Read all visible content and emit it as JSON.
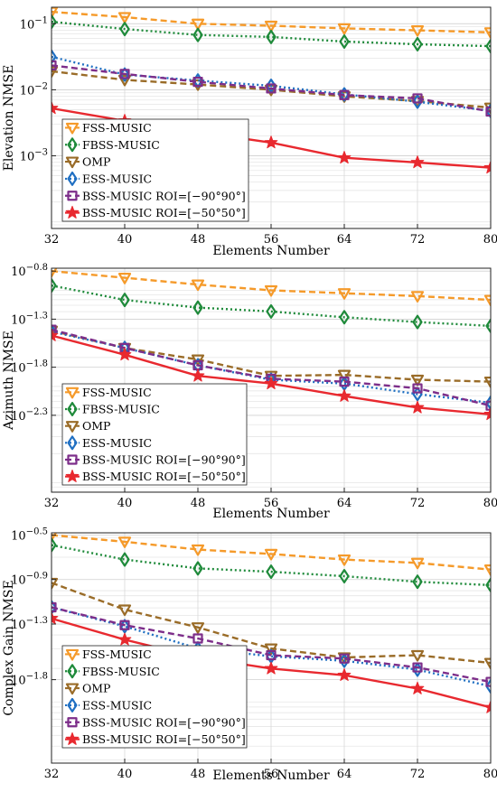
{
  "chart_data": [
    {
      "type": "line",
      "ylabel": "Elevation NMSE",
      "xlabel": "Elements Number",
      "yscale": "log",
      "ylim_log10": [
        -4.1,
        -0.75
      ],
      "xlim": [
        32,
        80
      ],
      "x": [
        32,
        40,
        48,
        56,
        64,
        72,
        80
      ],
      "xticks": [
        "32",
        "40",
        "48",
        "56",
        "64",
        "72",
        "80"
      ],
      "yticks": [
        {
          "exp": -1,
          "label": "10^-1"
        },
        {
          "exp": -2,
          "label": "10^-2"
        },
        {
          "exp": -3,
          "label": "10^-3"
        }
      ],
      "grid": true,
      "legend_position": "bottom-left",
      "series": [
        {
          "name": "FSS-MUSIC",
          "log10_values": [
            -0.82,
            -0.9,
            -1.0,
            -1.03,
            -1.07,
            -1.1,
            -1.13
          ]
        },
        {
          "name": "FBSS-MUSIC",
          "log10_values": [
            -0.97,
            -1.08,
            -1.17,
            -1.2,
            -1.27,
            -1.31,
            -1.34
          ]
        },
        {
          "name": "OMP",
          "log10_values": [
            -1.72,
            -1.85,
            -1.92,
            -2.0,
            -2.1,
            -2.17,
            -2.27
          ]
        },
        {
          "name": "ESS-MUSIC",
          "log10_values": [
            -1.5,
            -1.77,
            -1.86,
            -1.94,
            -2.07,
            -2.18,
            -2.32
          ]
        },
        {
          "name": "BSS-MUSIC ROI=[−90°90°]",
          "log10_values": [
            -1.63,
            -1.76,
            -1.88,
            -1.98,
            -2.08,
            -2.13,
            -2.33
          ]
        },
        {
          "name": "BSS-MUSIC ROI=[−50°50°]",
          "log10_values": [
            -2.28,
            -2.47,
            -2.64,
            -2.8,
            -3.03,
            -3.1,
            -3.18
          ]
        }
      ]
    },
    {
      "type": "line",
      "ylabel": "Azimuth NMSE",
      "xlabel": "Elements Number",
      "yscale": "log",
      "ylim_log10": [
        -3.1,
        -0.77
      ],
      "xlim": [
        32,
        80
      ],
      "x": [
        32,
        40,
        48,
        56,
        64,
        72,
        80
      ],
      "xticks": [
        "32",
        "40",
        "48",
        "56",
        "64",
        "72",
        "80"
      ],
      "yticks": [
        {
          "exp": -0.8,
          "label": "10^-0.8"
        },
        {
          "exp": -1.3,
          "label": "10^-1.3"
        },
        {
          "exp": -1.8,
          "label": "10^-1.8"
        },
        {
          "exp": -2.3,
          "label": "10^-2.3"
        }
      ],
      "grid": true,
      "legend_position": "bottom-left",
      "series": [
        {
          "name": "FSS-MUSIC",
          "log10_values": [
            -0.8,
            -0.87,
            -0.94,
            -1.0,
            -1.03,
            -1.06,
            -1.1
          ]
        },
        {
          "name": "FBSS-MUSIC",
          "log10_values": [
            -0.95,
            -1.1,
            -1.18,
            -1.22,
            -1.28,
            -1.33,
            -1.37
          ]
        },
        {
          "name": "OMP",
          "log10_values": [
            -1.42,
            -1.6,
            -1.72,
            -1.89,
            -1.88,
            -1.93,
            -1.95
          ]
        },
        {
          "name": "ESS-MUSIC",
          "log10_values": [
            -1.43,
            -1.6,
            -1.78,
            -1.93,
            -1.97,
            -2.08,
            -2.17
          ]
        },
        {
          "name": "BSS-MUSIC ROI=[−90°90°]",
          "log10_values": [
            -1.41,
            -1.6,
            -1.78,
            -1.92,
            -1.95,
            -2.02,
            -2.2
          ]
        },
        {
          "name": "BSS-MUSIC ROI=[−50°50°]",
          "log10_values": [
            -1.47,
            -1.67,
            -1.89,
            -1.97,
            -2.1,
            -2.22,
            -2.29
          ]
        }
      ]
    },
    {
      "type": "line",
      "ylabel": "Complex Gain NMSE",
      "xlabel": "Elements Number",
      "yscale": "log",
      "ylim_log10": [
        -2.55,
        -0.48
      ],
      "xlim": [
        32,
        80
      ],
      "x": [
        32,
        40,
        48,
        56,
        64,
        72,
        80
      ],
      "xticks": [
        "32",
        "40",
        "48",
        "56",
        "64",
        "72",
        "80"
      ],
      "yticks": [
        {
          "exp": -0.5,
          "label": "10^-0.5"
        },
        {
          "exp": -0.9,
          "label": "10^-0.9"
        },
        {
          "exp": -1.3,
          "label": "10^-1.3"
        },
        {
          "exp": -1.8,
          "label": "10^-1.8"
        }
      ],
      "grid": true,
      "legend_position": "bottom-left",
      "series": [
        {
          "name": "FSS-MUSIC",
          "log10_values": [
            -0.5,
            -0.56,
            -0.63,
            -0.67,
            -0.72,
            -0.75,
            -0.81
          ]
        },
        {
          "name": "FBSS-MUSIC",
          "log10_values": [
            -0.59,
            -0.72,
            -0.8,
            -0.83,
            -0.87,
            -0.92,
            -0.95
          ]
        },
        {
          "name": "OMP",
          "log10_values": [
            -0.93,
            -1.17,
            -1.33,
            -1.52,
            -1.6,
            -1.58,
            -1.65
          ]
        },
        {
          "name": "ESS-MUSIC",
          "log10_values": [
            -1.15,
            -1.32,
            -1.52,
            -1.59,
            -1.63,
            -1.71,
            -1.86
          ]
        },
        {
          "name": "BSS-MUSIC ROI=[−90°90°]",
          "log10_values": [
            -1.15,
            -1.31,
            -1.43,
            -1.58,
            -1.61,
            -1.69,
            -1.82
          ]
        },
        {
          "name": "BSS-MUSIC ROI=[−50°50°]",
          "log10_values": [
            -1.25,
            -1.44,
            -1.6,
            -1.7,
            -1.76,
            -1.88,
            -2.05
          ]
        }
      ]
    }
  ],
  "styles": [
    {
      "color": "#f59a2a",
      "dash": "7,4",
      "marker": "triangle-down-icon"
    },
    {
      "color": "#1e8a3a",
      "dash": "2,3",
      "marker": "diamond-icon"
    },
    {
      "color": "#9a6c28",
      "dash": "7,4",
      "marker": "triangle-down-icon"
    },
    {
      "color": "#1f6fc2",
      "dash": "2,3",
      "marker": "diamond-icon"
    },
    {
      "color": "#7d2e8a",
      "dash": "7,4",
      "marker": "square-icon"
    },
    {
      "color": "#e8292f",
      "dash": "",
      "marker": "star-icon"
    }
  ]
}
